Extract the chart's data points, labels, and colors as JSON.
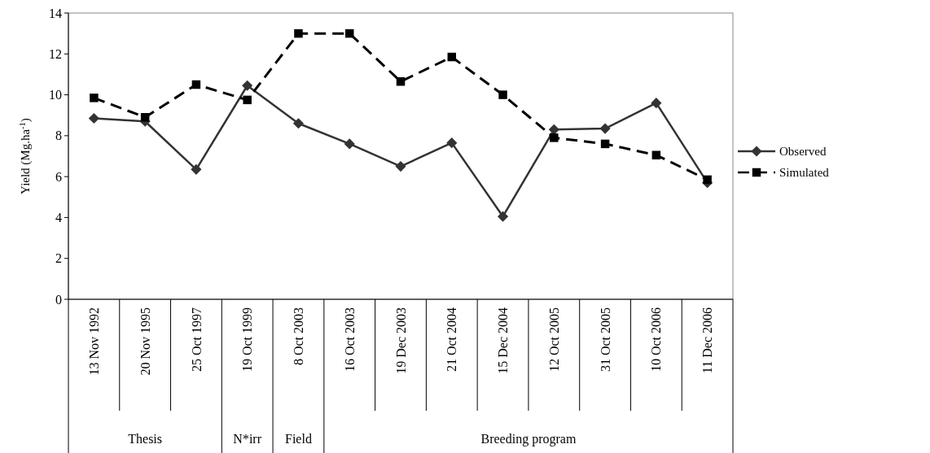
{
  "chart_data": {
    "type": "line",
    "ylabel": "Yield (Mg.ha$^{-1}$)",
    "categories": [
      "13 Nov 1992",
      "20 Nov 1995",
      "25 Oct 1997",
      "19 Oct 1999",
      "8 Oct 2003",
      "16 Oct 2003",
      "19 Dec 2003",
      "21 Oct 2004",
      "15 Dec 2004",
      "12 Oct 2005",
      "31 Oct 2005",
      "10 Oct 2006",
      "11 Dec 2006"
    ],
    "series": [
      {
        "name": "Observed",
        "color": "#333333",
        "marker": "diamond",
        "line_style": "solid",
        "values": [
          8.85,
          8.7,
          6.35,
          10.45,
          8.6,
          7.6,
          6.5,
          7.65,
          4.05,
          8.3,
          8.35,
          9.6,
          5.7
        ]
      },
      {
        "name": "Simulated",
        "color": "#000000",
        "marker": "square",
        "line_style": "dashed",
        "values": [
          9.85,
          8.9,
          10.5,
          9.75,
          13.0,
          13.0,
          10.65,
          11.85,
          10.0,
          7.9,
          7.6,
          7.05,
          5.85
        ]
      }
    ],
    "ylim": [
      0,
      14
    ],
    "yticks": [
      0,
      2,
      4,
      6,
      8,
      10,
      12,
      14
    ],
    "grid": false,
    "legend": "right",
    "annotations": [
      "Thesis",
      "N*irr",
      "Field",
      "Breeding program"
    ]
  }
}
